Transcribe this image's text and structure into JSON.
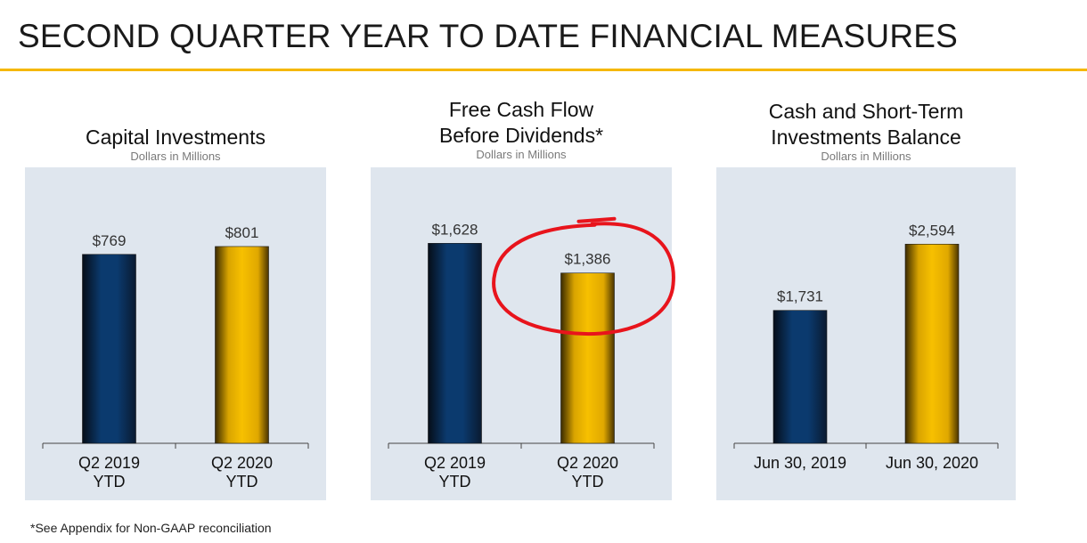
{
  "page": {
    "title": "SECOND QUARTER YEAR TO DATE FINANCIAL MEASURES",
    "footnote": "*See Appendix for Non-GAAP reconciliation"
  },
  "colors": {
    "accent_rule": "#f5b800",
    "panel_bg": "#dfe6ee",
    "series_2019": "#0b3a6e",
    "series_2020": "#f7c000",
    "highlight_circle": "#e8141c"
  },
  "chart_data": [
    {
      "type": "bar",
      "title": "Capital Investments",
      "subtitle": "Dollars in Millions",
      "categories": [
        [
          "Q2 2019",
          "YTD"
        ],
        [
          "Q2 2020",
          "YTD"
        ]
      ],
      "values": [
        769,
        801
      ],
      "value_labels": [
        "$769",
        "$801"
      ],
      "ylim": [
        0,
        1000
      ],
      "grid": false,
      "highlight_index": null
    },
    {
      "type": "bar",
      "title": [
        "Free Cash Flow",
        "Before Dividends*"
      ],
      "subtitle": "Dollars in Millions",
      "categories": [
        [
          "Q2 2019",
          "YTD"
        ],
        [
          "Q2 2020",
          "YTD"
        ]
      ],
      "values": [
        1628,
        1386
      ],
      "value_labels": [
        "$1,628",
        "$1,386"
      ],
      "ylim": [
        0,
        2000
      ],
      "grid": false,
      "highlight_index": 1
    },
    {
      "type": "bar",
      "title": [
        "Cash and Short-Term",
        "Investments Balance"
      ],
      "subtitle": "Dollars in Millions",
      "categories": [
        [
          "Jun 30, 2019"
        ],
        [
          "Jun 30, 2020"
        ]
      ],
      "values": [
        1731,
        2594
      ],
      "value_labels": [
        "$1,731",
        "$2,594"
      ],
      "ylim": [
        0,
        3200
      ],
      "grid": false,
      "highlight_index": null
    }
  ]
}
